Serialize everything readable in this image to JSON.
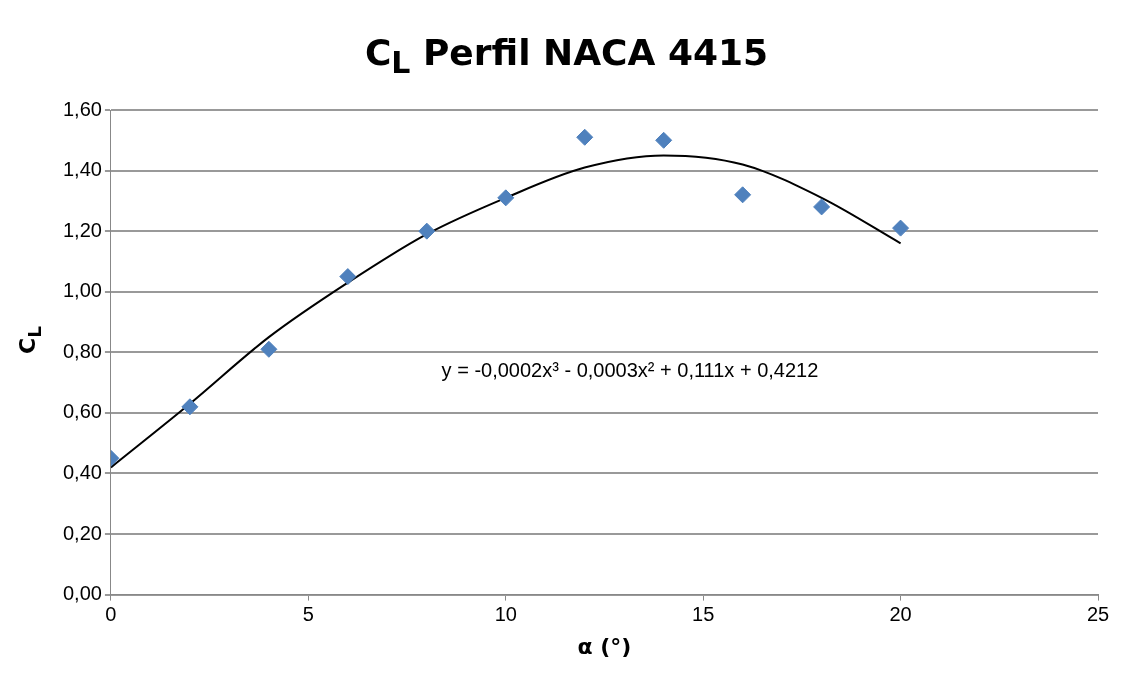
{
  "chart_data": {
    "type": "scatter",
    "title": "C$_{L}$ Perfil NACA 4415",
    "xlabel": "α (°)",
    "ylabel": "C$_{L}$",
    "x": [
      0,
      2,
      4,
      6,
      8,
      10,
      12,
      14,
      16,
      18,
      20
    ],
    "series": [
      {
        "color": "#4f81bd",
        "marker": "diamond",
        "values": [
          0.45,
          0.62,
          0.81,
          1.05,
          1.2,
          1.31,
          1.51,
          1.5,
          1.32,
          1.28,
          1.21
        ]
      },
      {
        "type": "line",
        "color": "#000000",
        "marker": "none",
        "line_style": "solid",
        "x": [
          0,
          2,
          4,
          6,
          8,
          10,
          12,
          14,
          16,
          18,
          20
        ],
        "values": [
          0.42,
          0.63,
          0.85,
          1.03,
          1.19,
          1.31,
          1.41,
          1.45,
          1.42,
          1.31,
          1.16
        ]
      }
    ],
    "xlim": [
      0,
      25
    ],
    "xticks": [
      0,
      5,
      10,
      15,
      20,
      25
    ],
    "ylim": [
      0,
      1.6
    ],
    "yticks": [
      {
        "value": 0,
        "label": "0,00"
      },
      {
        "value": 0.2,
        "label": "0,20"
      },
      {
        "value": 0.4,
        "label": "0,40"
      },
      {
        "value": 0.6,
        "label": "0,60"
      },
      {
        "value": 0.8,
        "label": "0,80"
      },
      {
        "value": 1.0,
        "label": "1,00"
      },
      {
        "value": 1.2,
        "label": "1,20"
      },
      {
        "value": 1.4,
        "label": "1,40"
      },
      {
        "value": 1.6,
        "label": "1,60"
      }
    ],
    "grid": "y",
    "legend": false,
    "annotations": [
      "y = -0,0002x³ - 0,0003x² + 0,111x + 0,4212"
    ]
  }
}
